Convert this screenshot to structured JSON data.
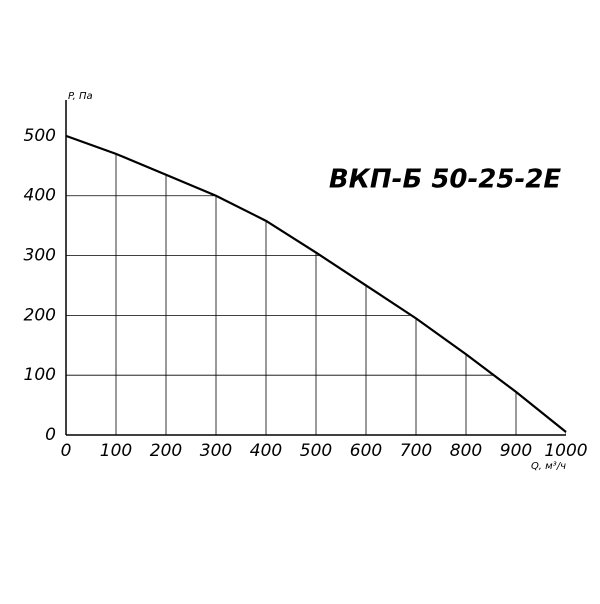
{
  "chart_data": {
    "type": "line",
    "title": "ВКП-Б 50-25-2E",
    "x_label": "Q, м³/ч",
    "y_label": "P, Па",
    "x": [
      0,
      100,
      200,
      300,
      400,
      500,
      600,
      700,
      800,
      900,
      1000
    ],
    "series": [
      {
        "name": "ВКП-Б 50-25-2E",
        "color": "#000000",
        "values": [
          500,
          470,
          435,
          400,
          358,
          305,
          250,
          195,
          135,
          72,
          5
        ]
      }
    ],
    "xlim": [
      0,
      1000
    ],
    "ylim": [
      0,
      560
    ],
    "xticks": [
      0,
      100,
      200,
      300,
      400,
      500,
      600,
      700,
      800,
      900,
      1000
    ],
    "yticks": [
      0,
      100,
      200,
      300,
      400,
      500
    ],
    "grid": true
  }
}
